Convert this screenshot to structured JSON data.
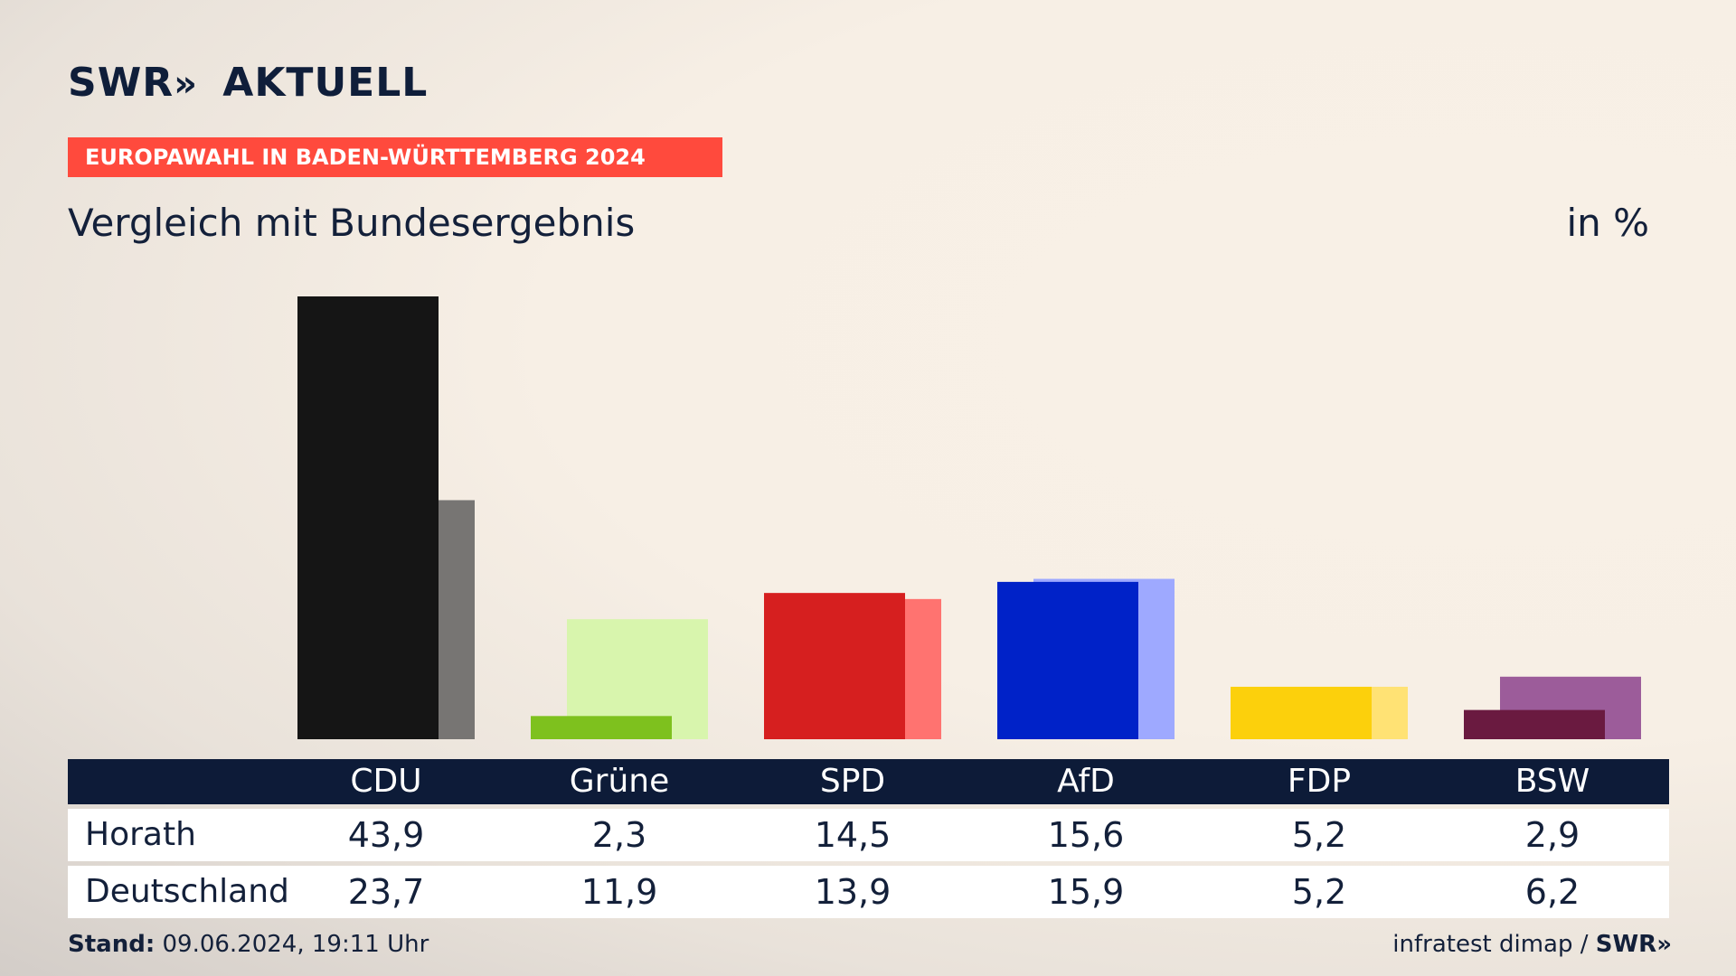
{
  "header": {
    "logo_text": "SWR",
    "logo_arrows": "»",
    "logo_suffix": "AKTUELL",
    "banner": "EUROPAWAHL IN BADEN-WÜRTTEMBERG 2024",
    "subtitle": "Vergleich mit Bundesergebnis",
    "unit": "in %"
  },
  "table": {
    "rows": [
      {
        "label": "Horath",
        "values": [
          "43,9",
          "2,3",
          "14,5",
          "15,6",
          "5,2",
          "2,9"
        ]
      },
      {
        "label": "Deutschland",
        "values": [
          "23,7",
          "11,9",
          "13,9",
          "15,9",
          "5,2",
          "6,2"
        ]
      }
    ]
  },
  "footer": {
    "stand_label": "Stand:",
    "stand_value": "09.06.2024, 19:11 Uhr",
    "source": "infratest dimap /",
    "source_brand": "SWR",
    "source_arrows": "»"
  },
  "chart_data": {
    "type": "bar",
    "categories": [
      "CDU",
      "Grüne",
      "SPD",
      "AfD",
      "FDP",
      "BSW"
    ],
    "series": [
      {
        "name": "Horath",
        "values": [
          43.9,
          2.3,
          14.5,
          15.6,
          5.2,
          2.9
        ]
      },
      {
        "name": "Deutschland",
        "values": [
          23.7,
          11.9,
          13.9,
          15.9,
          5.2,
          6.2
        ]
      }
    ],
    "colors": {
      "primary": [
        "#151515",
        "#7ec11e",
        "#d61f1f",
        "#0022c8",
        "#fcd00c",
        "#6a1a40"
      ],
      "secondary": [
        "#777573",
        "#d8f5ad",
        "#ff7370",
        "#9ea9ff",
        "#ffe274",
        "#9c5c9a"
      ]
    },
    "ylim": [
      0,
      43.9
    ],
    "title": "Vergleich mit Bundesergebnis",
    "xlabel": "",
    "ylabel": "in %"
  }
}
